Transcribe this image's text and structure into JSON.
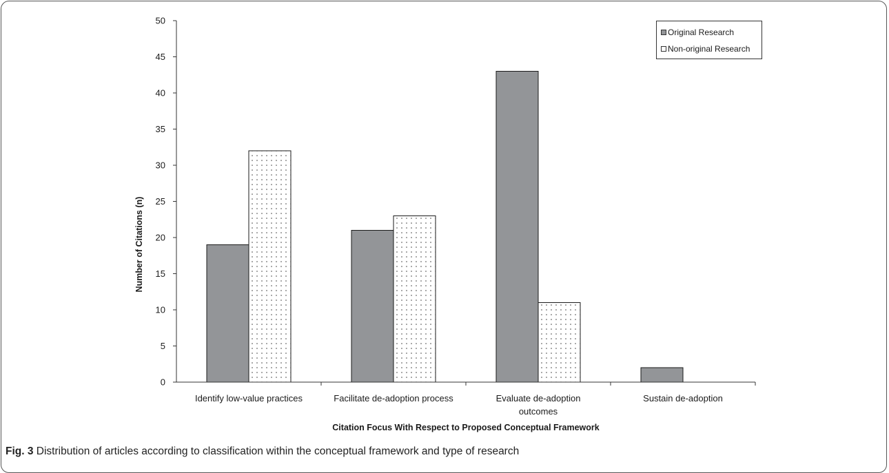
{
  "caption": {
    "label": "Fig. 3",
    "text": "Distribution of articles according to classification within the conceptual framework and type of research"
  },
  "colors": {
    "original": "#939598",
    "non_original_dots": "#333333",
    "axis": "#333333"
  },
  "chart_data": {
    "type": "bar",
    "title": "",
    "xlabel": "Citation Focus With Respect to Proposed Conceptual Framework",
    "ylabel": "Number of Citations (n)",
    "ylim": [
      0,
      50
    ],
    "yticks": [
      0,
      5,
      10,
      15,
      20,
      25,
      30,
      35,
      40,
      45,
      50
    ],
    "grid": false,
    "legend_position": "top-right",
    "categories": [
      [
        "Identify low-value practices"
      ],
      [
        "Facilitate de-adoption process"
      ],
      [
        "Evaluate de-adoption",
        "outcomes"
      ],
      [
        "Sustain de-adoption"
      ]
    ],
    "series": [
      {
        "name": "Original Research",
        "values": [
          19,
          21,
          43,
          2
        ]
      },
      {
        "name": "Non-original Research",
        "values": [
          32,
          23,
          11,
          0
        ]
      }
    ]
  }
}
